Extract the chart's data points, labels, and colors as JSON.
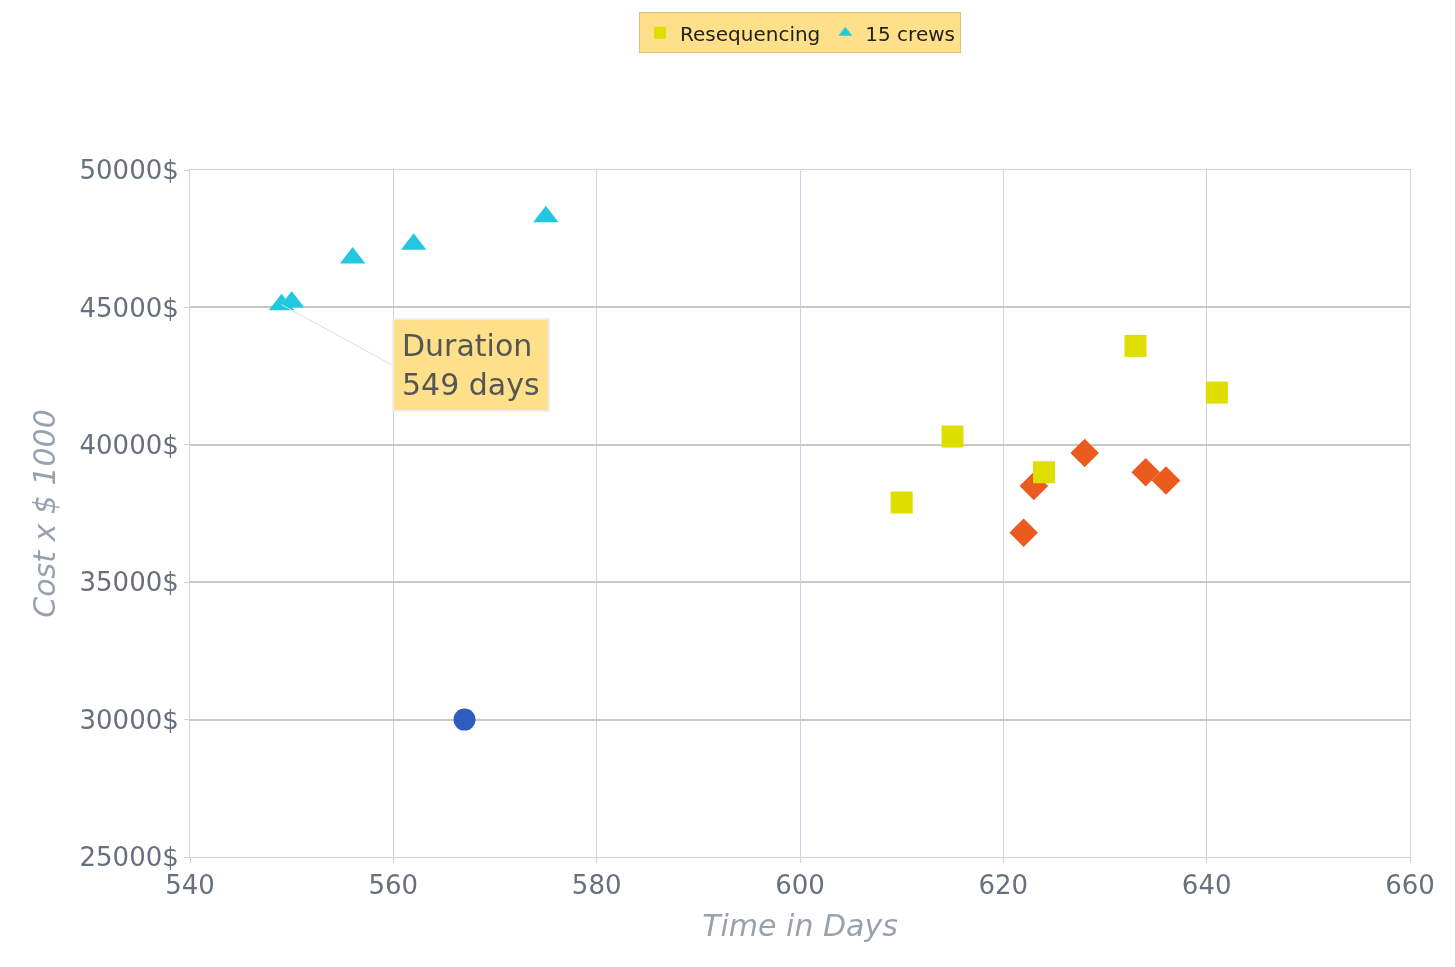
{
  "chart_data": {
    "type": "scatter",
    "xlabel": "Time in Days",
    "ylabel": "Cost x $ 1000",
    "annotations": [
      {
        "text": "Duration\n549 days",
        "x": 549,
        "y": 45100
      }
    ],
    "series": [
      {
        "color": "#2e5cbf",
        "marker": "circle",
        "x": [
          567
        ],
        "values": [
          30000
        ]
      },
      {
        "color": "#eb5a1e",
        "marker": "diamond",
        "x": [
          623,
          622,
          628,
          634,
          636
        ],
        "values": [
          38500,
          36800,
          39700,
          39000,
          38700
        ]
      },
      {
        "name": "Resequencing",
        "color": "#dede00",
        "marker": "square",
        "x": [
          610,
          615,
          624,
          633,
          641
        ],
        "values": [
          37900,
          40300,
          39000,
          43600,
          41900
        ]
      },
      {
        "name": "15 crews",
        "color": "#22c8e0",
        "marker": "triangle",
        "x": [
          549,
          550,
          556,
          562,
          575
        ],
        "values": [
          45100,
          45200,
          46800,
          47300,
          48300
        ]
      }
    ],
    "xlim": [
      540,
      660
    ],
    "xticks": [
      540,
      560,
      580,
      600,
      620,
      640,
      660
    ],
    "ylim": [
      25000,
      50000
    ],
    "yticks": [
      {
        "value": 25000,
        "label": "25000$"
      },
      {
        "value": 30000,
        "label": "30000$"
      },
      {
        "value": 35000,
        "label": "35000$"
      },
      {
        "value": 40000,
        "label": "40000$"
      },
      {
        "value": 45000,
        "label": "45000$"
      },
      {
        "value": 50000,
        "label": "50000$"
      }
    ],
    "grid": true,
    "legend": "top"
  }
}
